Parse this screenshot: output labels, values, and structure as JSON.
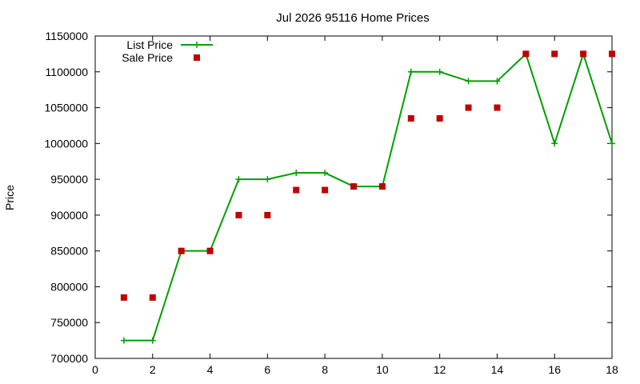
{
  "chart_data": {
    "type": "line",
    "title": "Jul 2026 95116 Home Prices",
    "xlabel": "",
    "ylabel": "Price",
    "xlim": [
      0,
      18
    ],
    "ylim": [
      700000,
      1150000
    ],
    "x_ticks": [
      0,
      2,
      4,
      6,
      8,
      10,
      12,
      14,
      16,
      18
    ],
    "y_ticks": [
      700000,
      750000,
      800000,
      850000,
      900000,
      950000,
      1000000,
      1050000,
      1100000,
      1150000
    ],
    "grid": false,
    "legend_position": "top-left",
    "series": [
      {
        "name": "List Price",
        "style": "line-with-plus-markers",
        "color": "#00a000",
        "x": [
          1,
          2,
          3,
          4,
          5,
          6,
          7,
          8,
          9,
          10,
          11,
          12,
          13,
          14,
          15,
          16,
          17,
          18
        ],
        "values": [
          725000,
          725000,
          850000,
          850000,
          950000,
          950000,
          959000,
          959000,
          940000,
          940000,
          1100000,
          1100000,
          1087000,
          1087000,
          1125000,
          1000000,
          1125000,
          1000000
        ]
      },
      {
        "name": "Sale Price",
        "style": "square-markers",
        "color": "#c00000",
        "x": [
          1,
          2,
          3,
          4,
          5,
          6,
          7,
          8,
          9,
          10,
          11,
          12,
          13,
          14,
          15,
          16,
          17,
          18
        ],
        "values": [
          785000,
          785000,
          850000,
          850000,
          900000,
          900000,
          935000,
          935000,
          940000,
          940000,
          1035000,
          1035000,
          1050000,
          1050000,
          1125000,
          1125000,
          1125000,
          1125000
        ]
      }
    ]
  }
}
